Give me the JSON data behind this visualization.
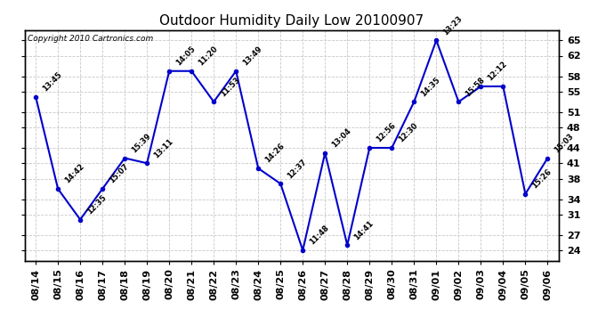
{
  "title": "Outdoor Humidity Daily Low 20100907",
  "copyright": "Copyright 2010 Cartronics.com",
  "x_labels": [
    "08/14",
    "08/15",
    "08/16",
    "08/17",
    "08/18",
    "08/19",
    "08/20",
    "08/21",
    "08/22",
    "08/23",
    "08/24",
    "08/25",
    "08/26",
    "08/27",
    "08/28",
    "08/29",
    "08/30",
    "08/31",
    "09/01",
    "09/02",
    "09/03",
    "09/04",
    "09/05",
    "09/06"
  ],
  "y_vals": [
    54,
    36,
    30,
    36,
    42,
    41,
    59,
    59,
    53,
    59,
    40,
    37,
    24,
    43,
    25,
    44,
    44,
    53,
    65,
    53,
    56,
    56,
    35,
    42
  ],
  "time_lbls": [
    "13:45",
    "14:42",
    "12:35",
    "15:07",
    "15:39",
    "13:11",
    "14:05",
    "11:20",
    "11:53",
    "13:49",
    "14:26",
    "12:37",
    "11:48",
    "13:04",
    "14:41",
    "12:56",
    "12:30",
    "14:35",
    "13:23",
    "15:58",
    "12:12",
    "",
    "15:26",
    "15:03"
  ],
  "line_color": "#0000cc",
  "bg_color": "#ffffff",
  "grid_color": "#c8c8c8",
  "title_fontsize": 11,
  "copyright_fontsize": 6.5,
  "annot_fontsize": 6,
  "tick_fontsize": 8,
  "y_ticks": [
    24,
    27,
    31,
    34,
    38,
    41,
    44,
    48,
    51,
    55,
    58,
    62,
    65
  ],
  "y_min": 22,
  "y_max": 67
}
